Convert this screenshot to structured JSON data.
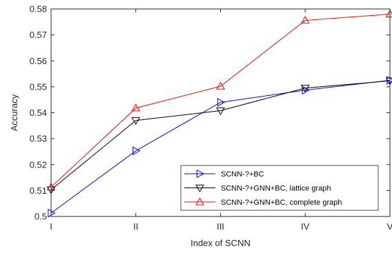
{
  "chart_data": {
    "type": "line",
    "title": "",
    "xlabel": "Index of SCNN",
    "ylabel": "Accuracy",
    "categories": [
      "I",
      "II",
      "III",
      "IV",
      "V"
    ],
    "ylim": [
      0.5,
      0.58
    ],
    "yticks": [
      "0.5",
      "0.51",
      "0.52",
      "0.53",
      "0.54",
      "0.55",
      "0.56",
      "0.57",
      "0.58"
    ],
    "grid": false,
    "legend_position": "bottom-right",
    "series": [
      {
        "name": "SCNN-?+BC",
        "color": "#0000ff",
        "marker": "triangle-right",
        "values": [
          0.5013,
          0.5253,
          0.544,
          0.5487,
          0.5525
        ]
      },
      {
        "name": "SCNN-?+GNN+BC, lattice graph",
        "color": "#000000",
        "marker": "triangle-down",
        "values": [
          0.5103,
          0.537,
          0.5408,
          0.5495,
          0.5523
        ]
      },
      {
        "name": "SCNN-?+GNN+BC, complete graph",
        "color": "#ff0000",
        "marker": "triangle-up",
        "values": [
          0.5113,
          0.5418,
          0.5502,
          0.5756,
          0.578
        ]
      }
    ]
  }
}
